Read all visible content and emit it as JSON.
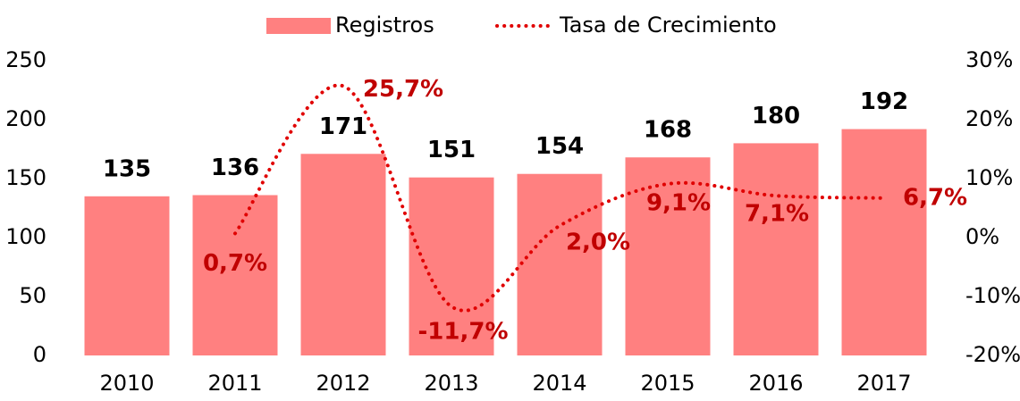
{
  "chart_data": {
    "type": "bar-line",
    "categories": [
      "2010",
      "2011",
      "2012",
      "2013",
      "2014",
      "2015",
      "2016",
      "2017"
    ],
    "series": [
      {
        "name": "Registros",
        "type": "bar",
        "color": "#ff8080",
        "values": [
          135,
          136,
          171,
          151,
          154,
          168,
          180,
          192
        ]
      },
      {
        "name": "Tasa de Crecimiento",
        "type": "line",
        "axis": "y2",
        "color": "#e00000",
        "values": [
          null,
          0.7,
          25.7,
          -11.7,
          2.0,
          9.1,
          7.1,
          6.7
        ],
        "value_labels": [
          null,
          "0,7%",
          "25,7%",
          "-11,7%",
          "2,0%",
          "9,1%",
          "7,1%",
          "6,7%"
        ]
      }
    ],
    "ylim": [
      0,
      250
    ],
    "yticks": [
      0,
      50,
      100,
      150,
      200,
      250
    ],
    "y2lim": [
      -20,
      30
    ],
    "y2ticks": [
      {
        "value": -20,
        "label": "-20%"
      },
      {
        "value": -10,
        "label": "-10%"
      },
      {
        "value": 0,
        "label": "0%"
      },
      {
        "value": 10,
        "label": "10%"
      },
      {
        "value": 20,
        "label": "20%"
      },
      {
        "value": 30,
        "label": "30%"
      }
    ],
    "legend": "top"
  }
}
